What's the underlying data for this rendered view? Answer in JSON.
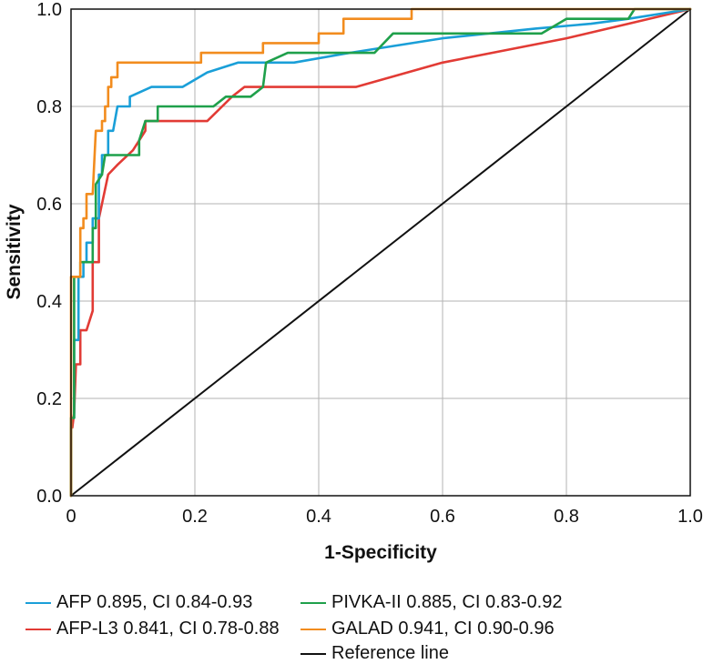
{
  "chart_data": {
    "type": "line",
    "xlabel": "1-Specificity",
    "ylabel": "Sensitivity",
    "xlim": [
      0,
      1
    ],
    "ylim": [
      0,
      1
    ],
    "grid": true,
    "x_ticks": [
      "0",
      "0.2",
      "0.4",
      "0.6",
      "0.8",
      "1.0"
    ],
    "y_ticks": [
      "0.0",
      "0.2",
      "0.4",
      "0.6",
      "0.8",
      "1.0"
    ],
    "legend_position": "bottom",
    "series": [
      {
        "name": "AFP 0.895, CI 0.84-0.93",
        "color": "#1a9fd8",
        "points": [
          [
            0,
            0
          ],
          [
            0,
            0.16
          ],
          [
            0.005,
            0.16
          ],
          [
            0.005,
            0.32
          ],
          [
            0.012,
            0.32
          ],
          [
            0.012,
            0.45
          ],
          [
            0.02,
            0.45
          ],
          [
            0.02,
            0.48
          ],
          [
            0.025,
            0.48
          ],
          [
            0.025,
            0.52
          ],
          [
            0.035,
            0.52
          ],
          [
            0.035,
            0.57
          ],
          [
            0.045,
            0.57
          ],
          [
            0.045,
            0.66
          ],
          [
            0.05,
            0.66
          ],
          [
            0.05,
            0.7
          ],
          [
            0.06,
            0.7
          ],
          [
            0.06,
            0.75
          ],
          [
            0.068,
            0.75
          ],
          [
            0.075,
            0.8
          ],
          [
            0.095,
            0.8
          ],
          [
            0.095,
            0.82
          ],
          [
            0.13,
            0.84
          ],
          [
            0.18,
            0.84
          ],
          [
            0.22,
            0.87
          ],
          [
            0.27,
            0.89
          ],
          [
            0.36,
            0.89
          ],
          [
            0.45,
            0.91
          ],
          [
            0.6,
            0.94
          ],
          [
            0.75,
            0.96
          ],
          [
            0.84,
            0.97
          ],
          [
            0.9,
            0.98
          ],
          [
            1,
            1
          ]
        ]
      },
      {
        "name": "AFP-L3 0.841, CI 0.78-0.88",
        "color": "#e23b35",
        "points": [
          [
            0,
            0
          ],
          [
            0,
            0.14
          ],
          [
            0.002,
            0.14
          ],
          [
            0.005,
            0.17
          ],
          [
            0.008,
            0.27
          ],
          [
            0.015,
            0.27
          ],
          [
            0.015,
            0.34
          ],
          [
            0.025,
            0.34
          ],
          [
            0.035,
            0.38
          ],
          [
            0.035,
            0.48
          ],
          [
            0.045,
            0.48
          ],
          [
            0.045,
            0.57
          ],
          [
            0.06,
            0.66
          ],
          [
            0.075,
            0.68
          ],
          [
            0.1,
            0.71
          ],
          [
            0.12,
            0.75
          ],
          [
            0.12,
            0.77
          ],
          [
            0.22,
            0.77
          ],
          [
            0.26,
            0.82
          ],
          [
            0.28,
            0.84
          ],
          [
            0.46,
            0.84
          ],
          [
            0.6,
            0.89
          ],
          [
            0.8,
            0.94
          ],
          [
            0.9,
            0.97
          ],
          [
            1,
            1
          ]
        ]
      },
      {
        "name": "PIVKA-II 0.885, CI 0.83-0.92",
        "color": "#1fa04b",
        "points": [
          [
            0,
            0
          ],
          [
            0,
            0.16
          ],
          [
            0.005,
            0.16
          ],
          [
            0.005,
            0.45
          ],
          [
            0.015,
            0.45
          ],
          [
            0.015,
            0.48
          ],
          [
            0.035,
            0.48
          ],
          [
            0.035,
            0.55
          ],
          [
            0.04,
            0.55
          ],
          [
            0.04,
            0.64
          ],
          [
            0.05,
            0.66
          ],
          [
            0.055,
            0.7
          ],
          [
            0.11,
            0.7
          ],
          [
            0.11,
            0.73
          ],
          [
            0.12,
            0.77
          ],
          [
            0.14,
            0.77
          ],
          [
            0.14,
            0.8
          ],
          [
            0.23,
            0.8
          ],
          [
            0.25,
            0.82
          ],
          [
            0.29,
            0.82
          ],
          [
            0.31,
            0.84
          ],
          [
            0.315,
            0.89
          ],
          [
            0.35,
            0.91
          ],
          [
            0.49,
            0.91
          ],
          [
            0.52,
            0.95
          ],
          [
            0.76,
            0.95
          ],
          [
            0.8,
            0.98
          ],
          [
            0.9,
            0.98
          ],
          [
            0.91,
            1.0
          ],
          [
            1,
            1
          ]
        ]
      },
      {
        "name": "GALAD 0.941, CI 0.90-0.96",
        "color": "#f28c1e",
        "points": [
          [
            0,
            0
          ],
          [
            0,
            0.45
          ],
          [
            0.015,
            0.45
          ],
          [
            0.015,
            0.55
          ],
          [
            0.02,
            0.55
          ],
          [
            0.02,
            0.57
          ],
          [
            0.025,
            0.57
          ],
          [
            0.025,
            0.62
          ],
          [
            0.035,
            0.62
          ],
          [
            0.04,
            0.75
          ],
          [
            0.05,
            0.75
          ],
          [
            0.05,
            0.77
          ],
          [
            0.055,
            0.77
          ],
          [
            0.055,
            0.8
          ],
          [
            0.06,
            0.8
          ],
          [
            0.06,
            0.84
          ],
          [
            0.065,
            0.84
          ],
          [
            0.065,
            0.86
          ],
          [
            0.075,
            0.86
          ],
          [
            0.075,
            0.89
          ],
          [
            0.21,
            0.89
          ],
          [
            0.21,
            0.91
          ],
          [
            0.31,
            0.91
          ],
          [
            0.31,
            0.93
          ],
          [
            0.4,
            0.93
          ],
          [
            0.4,
            0.95
          ],
          [
            0.44,
            0.95
          ],
          [
            0.44,
            0.98
          ],
          [
            0.55,
            0.98
          ],
          [
            0.55,
            1.0
          ],
          [
            1,
            1
          ]
        ]
      },
      {
        "name": "Reference line",
        "color": "#111111",
        "points": [
          [
            0,
            0
          ],
          [
            1,
            1
          ]
        ]
      }
    ]
  }
}
